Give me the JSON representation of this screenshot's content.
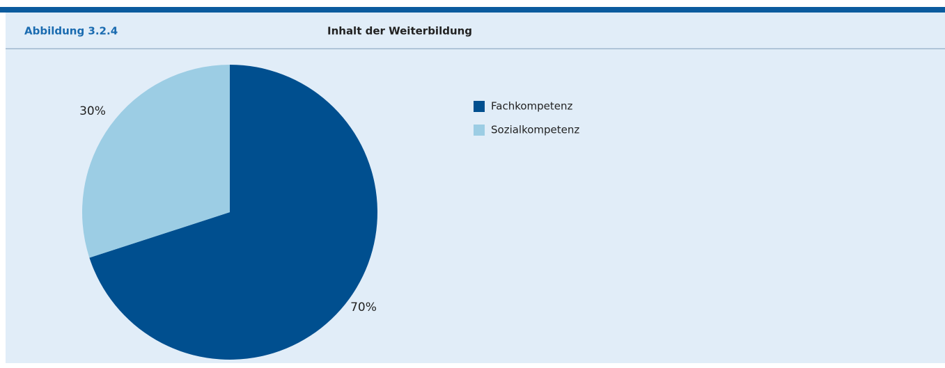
{
  "chart_data": {
    "type": "pie",
    "label": "Abbildung 3.2.4",
    "title": "Inhalt der Weiterbildung",
    "categories": [
      "Fachkompetenz",
      "Sozialkompetenz"
    ],
    "values": [
      70,
      30
    ],
    "value_labels": [
      "70%",
      "30%"
    ],
    "colors": [
      "#004f8f",
      "#9ccde4"
    ],
    "legend": "right"
  }
}
